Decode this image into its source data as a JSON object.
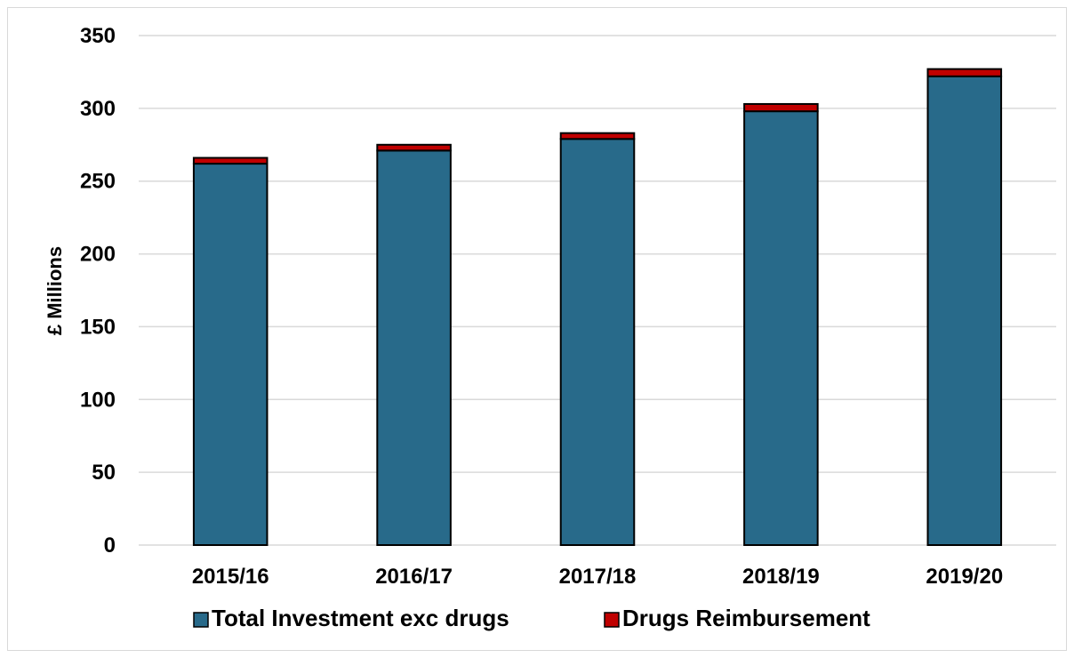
{
  "chart_data": {
    "type": "bar",
    "stacked": true,
    "categories": [
      "2015/16",
      "2016/17",
      "2017/18",
      "2018/19",
      "2019/20"
    ],
    "series": [
      {
        "name": "Total Investment exc drugs",
        "values": [
          262,
          271,
          279,
          298,
          322
        ],
        "color": "#286a8a"
      },
      {
        "name": "Drugs Reimbursement",
        "values": [
          4,
          4,
          4,
          5,
          5
        ],
        "color": "#c00000"
      }
    ],
    "title": "",
    "xlabel": "",
    "ylabel": "£ Millions",
    "ylim": [
      0,
      350
    ],
    "yticks": [
      0,
      50,
      100,
      150,
      200,
      250,
      300,
      350
    ],
    "grid": true,
    "legend_position": "bottom"
  }
}
